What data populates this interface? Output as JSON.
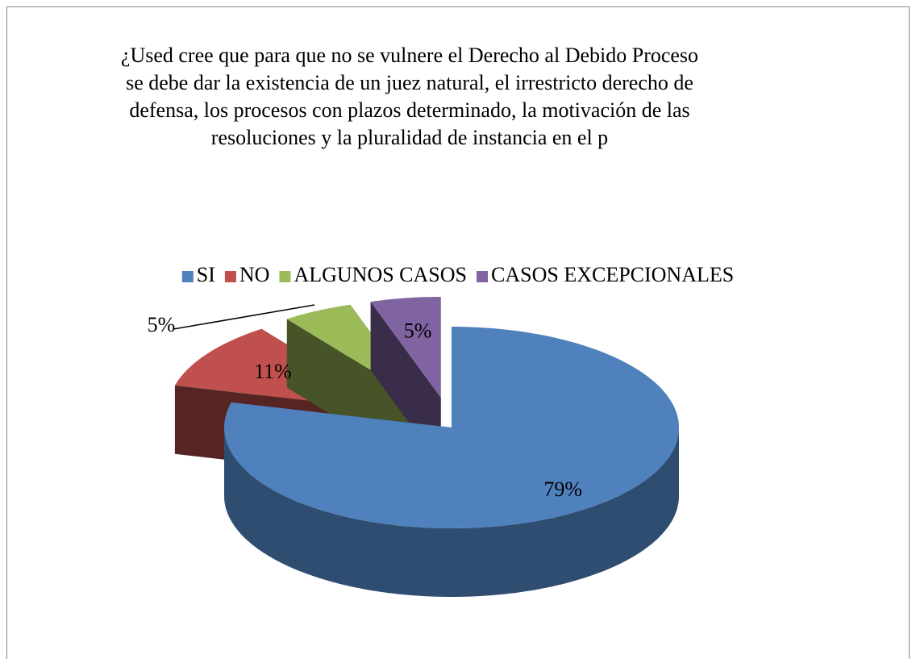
{
  "chart_data": {
    "type": "pie3d",
    "title": "¿Used cree que para que no se vulnere el Derecho al Debido Proceso se debe dar la existencia de un juez natural, el irrestricto derecho de defensa, los procesos con plazos determinado, la motivación de las resoluciones y la pluralidad de instancia en el p",
    "categories": [
      "SI",
      "NO",
      "ALGUNOS CASOS",
      "CASOS EXCEPCIONALES"
    ],
    "values": [
      79,
      11,
      5,
      5
    ],
    "value_labels": [
      "79%",
      "11%",
      "5%",
      "5%"
    ],
    "colors": [
      "#4f81bd",
      "#c0504d",
      "#9bbb59",
      "#8064a2"
    ],
    "legend": "top"
  }
}
